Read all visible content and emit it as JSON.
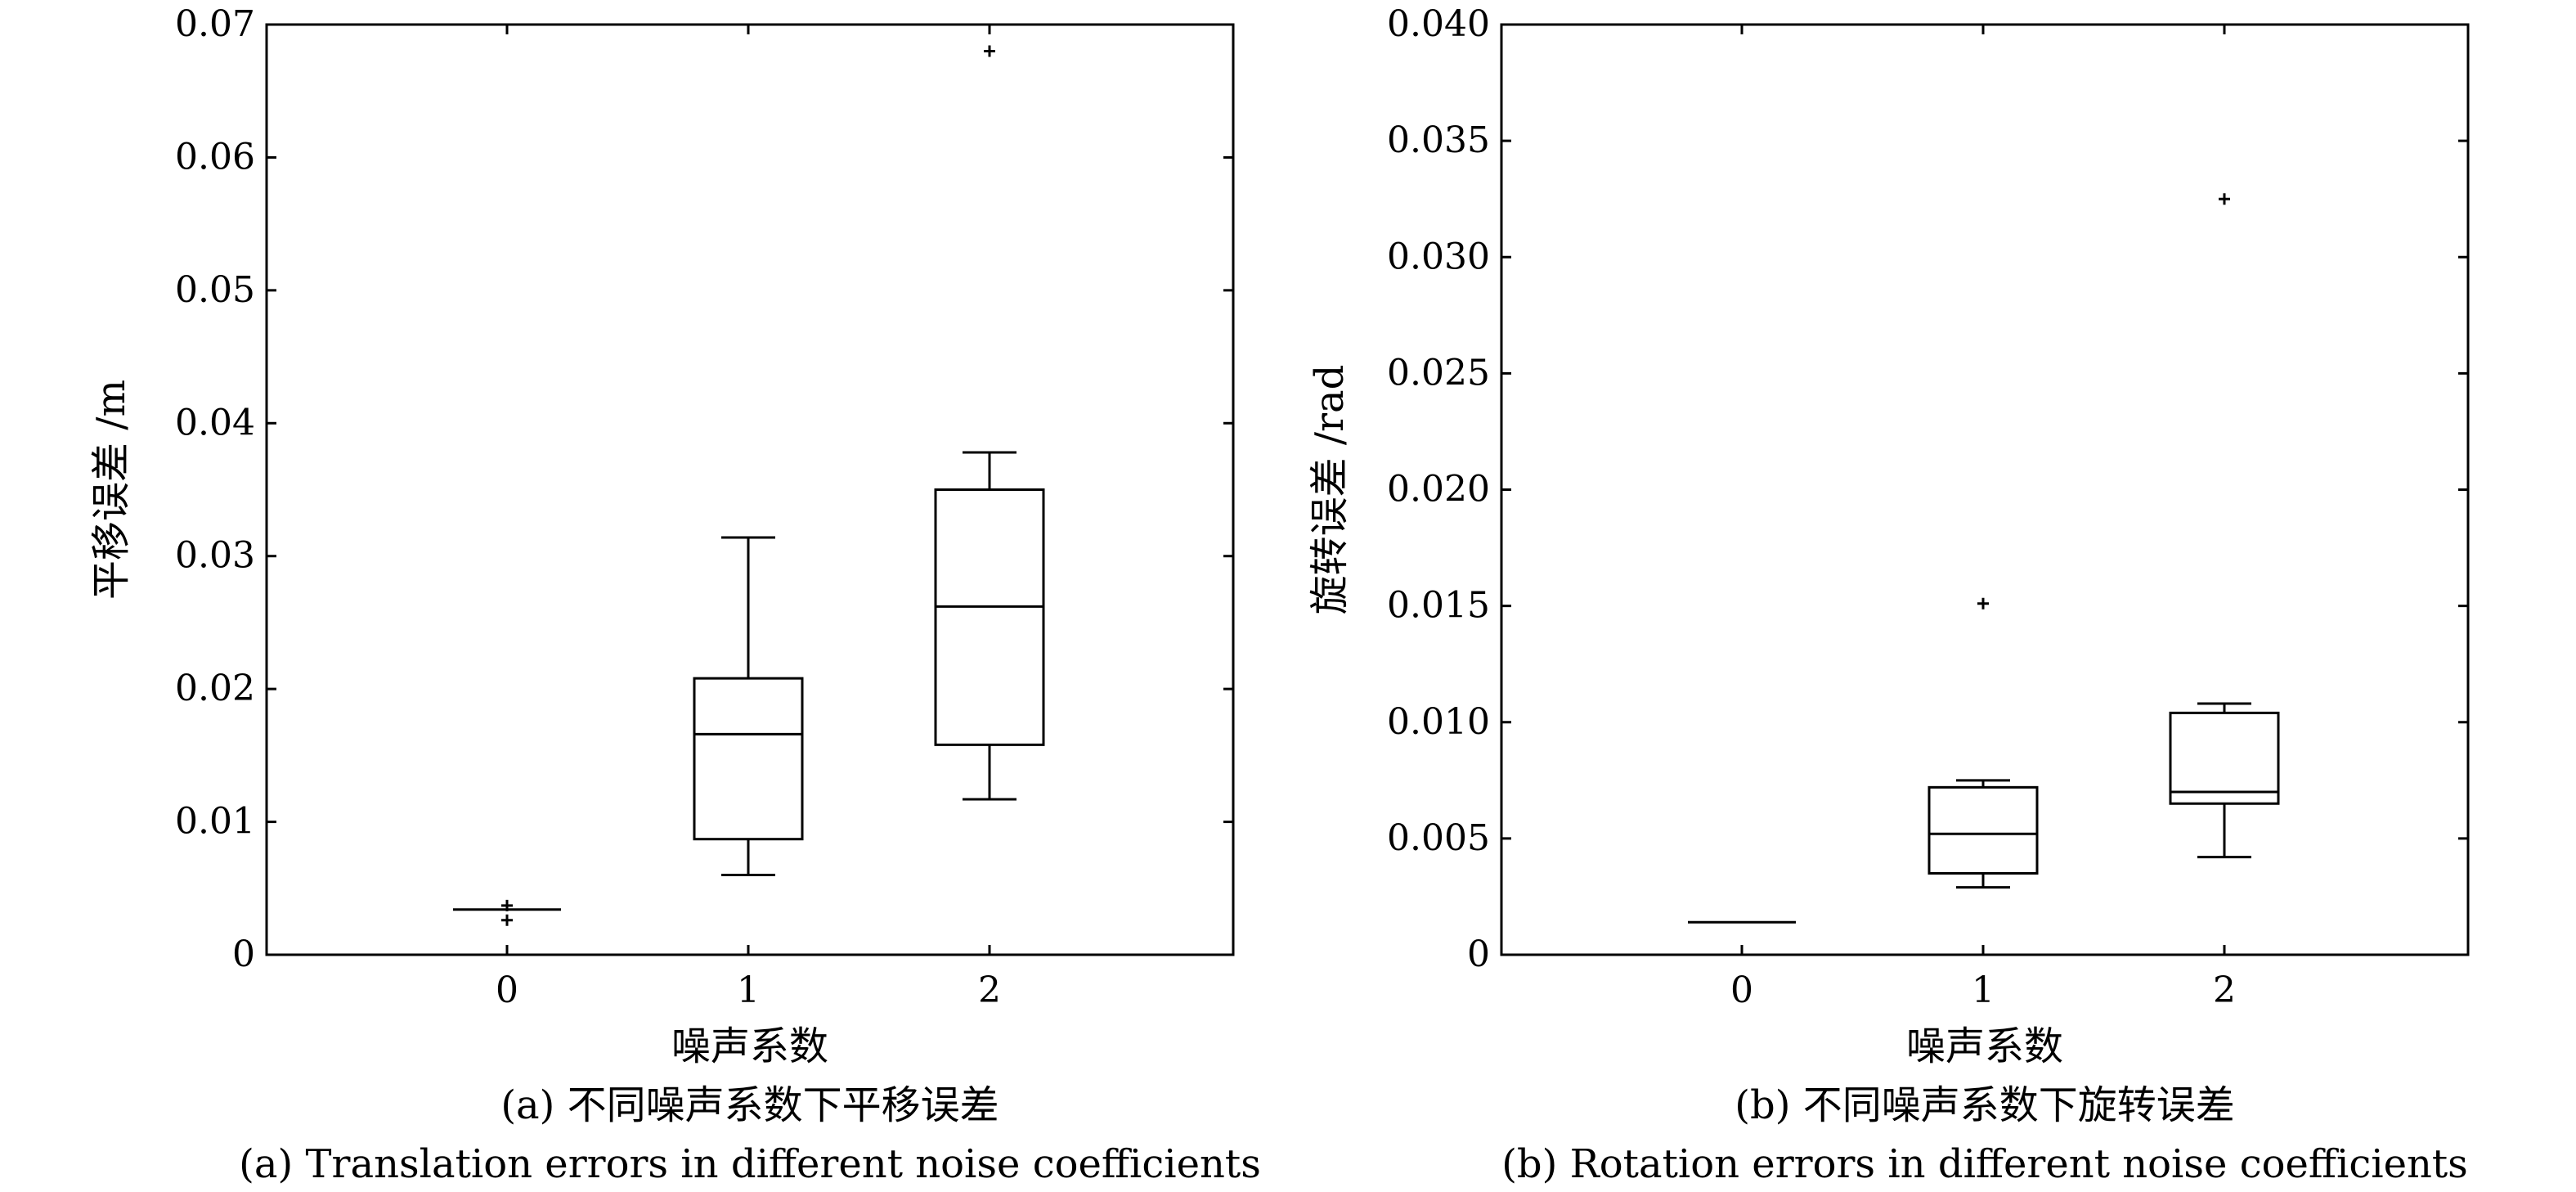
{
  "chart_data": [
    {
      "type": "box",
      "x_label": "噪声系数",
      "y_label": "平移误差 /m",
      "categories": [
        "0",
        "1",
        "2"
      ],
      "y_ticks": [
        "0",
        "0.01",
        "0.02",
        "0.03",
        "0.04",
        "0.05",
        "0.06",
        "0.07"
      ],
      "ylim": [
        0,
        0.07
      ],
      "caption_zh": "(a) 不同噪声系数下平移误差",
      "caption_en": "(a) Translation errors in different noise coefficients",
      "boxes": [
        {
          "category": "0",
          "whisker_low": 0.0034,
          "q1": 0.0034,
          "median": 0.0034,
          "q3": 0.0034,
          "whisker_high": 0.0034,
          "outliers": [
            0.0026,
            0.0037
          ]
        },
        {
          "category": "1",
          "whisker_low": 0.006,
          "q1": 0.0087,
          "median": 0.0166,
          "q3": 0.0208,
          "whisker_high": 0.0314,
          "outliers": []
        },
        {
          "category": "2",
          "whisker_low": 0.0117,
          "q1": 0.0158,
          "median": 0.0262,
          "q3": 0.035,
          "whisker_high": 0.0378,
          "outliers": [
            0.068
          ]
        }
      ]
    },
    {
      "type": "box",
      "x_label": "噪声系数",
      "y_label": "旋转误差 /rad",
      "categories": [
        "0",
        "1",
        "2"
      ],
      "y_ticks": [
        "0",
        "0.005",
        "0.010",
        "0.015",
        "0.020",
        "0.025",
        "0.030",
        "0.035",
        "0.040"
      ],
      "ylim": [
        0,
        0.04
      ],
      "caption_zh": "(b) 不同噪声系数下旋转误差",
      "caption_en": "(b) Rotation errors in different noise coefficients",
      "boxes": [
        {
          "category": "0",
          "whisker_low": 0.0014,
          "q1": 0.0014,
          "median": 0.0014,
          "q3": 0.0014,
          "whisker_high": 0.0014,
          "outliers": []
        },
        {
          "category": "1",
          "whisker_low": 0.0029,
          "q1": 0.0035,
          "median": 0.0052,
          "q3": 0.0072,
          "whisker_high": 0.0075,
          "outliers": [
            0.0151
          ]
        },
        {
          "category": "2",
          "whisker_low": 0.0042,
          "q1": 0.0065,
          "median": 0.007,
          "q3": 0.0104,
          "whisker_high": 0.0108,
          "outliers": [
            0.0325
          ]
        }
      ]
    }
  ]
}
